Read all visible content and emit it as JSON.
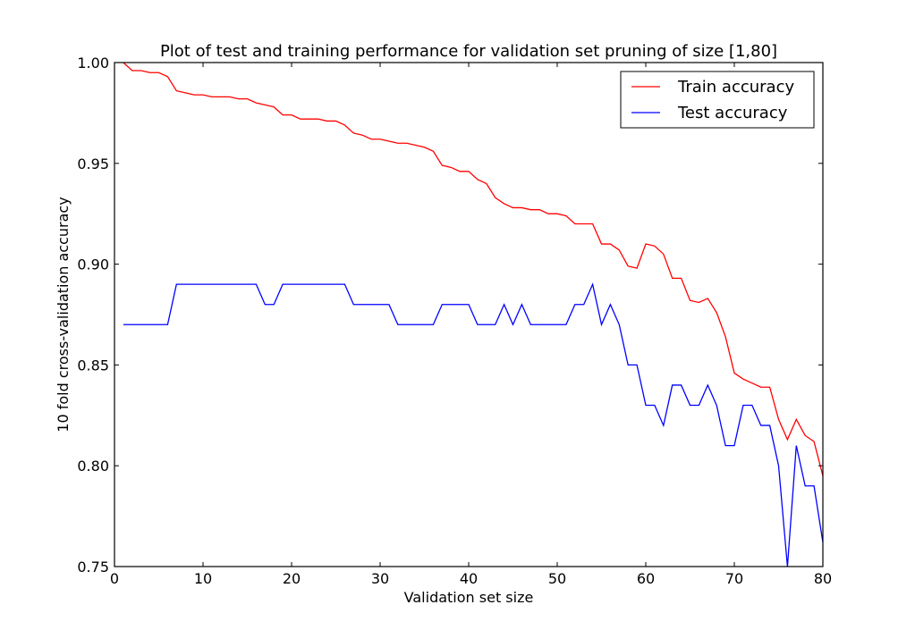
{
  "chart_data": {
    "type": "line",
    "title": "Plot of test and training performance for validation set pruning of size [1,80]",
    "xlabel": "Validation set size",
    "ylabel": "10 fold cross-validation accuracy",
    "xlim": [
      0,
      80
    ],
    "ylim": [
      0.75,
      1.0
    ],
    "xticks": [
      0,
      10,
      20,
      30,
      40,
      50,
      60,
      70,
      80
    ],
    "yticks": [
      0.75,
      0.8,
      0.85,
      0.9,
      0.95,
      1.0
    ],
    "xtick_labels": [
      "0",
      "10",
      "20",
      "30",
      "40",
      "50",
      "60",
      "70",
      "80"
    ],
    "ytick_labels": [
      "0.75",
      "0.80",
      "0.85",
      "0.90",
      "0.95",
      "1.00"
    ],
    "grid": false,
    "legend_position": "top-right",
    "x": [
      1,
      2,
      3,
      4,
      5,
      6,
      7,
      8,
      9,
      10,
      11,
      12,
      13,
      14,
      15,
      16,
      17,
      18,
      19,
      20,
      21,
      22,
      23,
      24,
      25,
      26,
      27,
      28,
      29,
      30,
      31,
      32,
      33,
      34,
      35,
      36,
      37,
      38,
      39,
      40,
      41,
      42,
      43,
      44,
      45,
      46,
      47,
      48,
      49,
      50,
      51,
      52,
      53,
      54,
      55,
      56,
      57,
      58,
      59,
      60,
      61,
      62,
      63,
      64,
      65,
      66,
      67,
      68,
      69,
      70,
      71,
      72,
      73,
      74,
      75,
      76,
      77,
      78,
      79,
      80
    ],
    "series": [
      {
        "name": "Train accuracy",
        "color": "#ff0000",
        "values": [
          1.0,
          0.996,
          0.996,
          0.995,
          0.995,
          0.993,
          0.986,
          0.985,
          0.984,
          0.984,
          0.983,
          0.983,
          0.983,
          0.982,
          0.982,
          0.98,
          0.979,
          0.978,
          0.974,
          0.974,
          0.972,
          0.972,
          0.972,
          0.971,
          0.971,
          0.969,
          0.965,
          0.964,
          0.962,
          0.962,
          0.961,
          0.96,
          0.96,
          0.959,
          0.958,
          0.956,
          0.949,
          0.948,
          0.946,
          0.946,
          0.942,
          0.94,
          0.933,
          0.93,
          0.928,
          0.928,
          0.927,
          0.927,
          0.925,
          0.925,
          0.924,
          0.92,
          0.92,
          0.92,
          0.91,
          0.91,
          0.907,
          0.899,
          0.898,
          0.91,
          0.909,
          0.905,
          0.893,
          0.893,
          0.882,
          0.881,
          0.883,
          0.876,
          0.864,
          0.846,
          0.843,
          0.841,
          0.839,
          0.839,
          0.823,
          0.813,
          0.823,
          0.815,
          0.812,
          0.795
        ]
      },
      {
        "name": "Test accuracy",
        "color": "#0000ff",
        "values": [
          0.87,
          0.87,
          0.87,
          0.87,
          0.87,
          0.87,
          0.89,
          0.89,
          0.89,
          0.89,
          0.89,
          0.89,
          0.89,
          0.89,
          0.89,
          0.89,
          0.88,
          0.88,
          0.89,
          0.89,
          0.89,
          0.89,
          0.89,
          0.89,
          0.89,
          0.89,
          0.88,
          0.88,
          0.88,
          0.88,
          0.88,
          0.87,
          0.87,
          0.87,
          0.87,
          0.87,
          0.88,
          0.88,
          0.88,
          0.88,
          0.87,
          0.87,
          0.87,
          0.88,
          0.87,
          0.88,
          0.87,
          0.87,
          0.87,
          0.87,
          0.87,
          0.88,
          0.88,
          0.89,
          0.87,
          0.88,
          0.87,
          0.85,
          0.85,
          0.83,
          0.83,
          0.82,
          0.84,
          0.84,
          0.83,
          0.83,
          0.84,
          0.83,
          0.81,
          0.81,
          0.83,
          0.83,
          0.82,
          0.82,
          0.8,
          0.75,
          0.81,
          0.79,
          0.79,
          0.762
        ]
      }
    ]
  }
}
